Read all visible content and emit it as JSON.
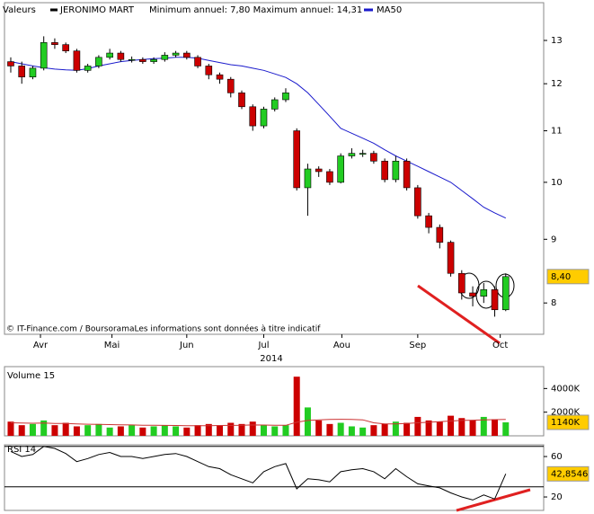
{
  "chart_data": [
    {
      "type": "candlestick",
      "legend_title": "Valeurs",
      "title": "JERONIMO MART",
      "subtitle": "Minimum annuel: 7,80 Maximum annuel: 14,31",
      "source": "© IT-Finance.com / BoursoramaLes informations sont données à titre indicatif",
      "xlabel": "2014",
      "legend_color": "#000000",
      "up_color": "#22cc22",
      "down_color": "#cc0000",
      "open": [
        12.5,
        12.4,
        12.15,
        12.35,
        12.95,
        12.9,
        12.75,
        12.3,
        12.4,
        12.6,
        12.7,
        12.55,
        12.55,
        12.5,
        12.55,
        12.65,
        12.7,
        12.6,
        12.4,
        12.2,
        12.1,
        11.8,
        11.5,
        11.1,
        11.45,
        11.65,
        11.0,
        9.9,
        10.25,
        10.2,
        10.0,
        10.5,
        10.55,
        10.55,
        10.4,
        10.05,
        10.4,
        9.9,
        9.4,
        9.2,
        8.95,
        8.45,
        8.15,
        8.1,
        8.2,
        7.9
      ],
      "high": [
        12.6,
        12.5,
        12.4,
        13.1,
        13.05,
        12.95,
        12.8,
        12.45,
        12.65,
        12.8,
        12.75,
        12.62,
        12.6,
        12.6,
        12.72,
        12.75,
        12.75,
        12.65,
        12.45,
        12.25,
        12.15,
        11.85,
        11.55,
        11.5,
        11.7,
        11.9,
        11.05,
        10.35,
        10.3,
        10.25,
        10.55,
        10.65,
        10.62,
        10.6,
        10.45,
        10.5,
        10.45,
        9.95,
        9.45,
        9.25,
        8.98,
        8.5,
        8.25,
        8.3,
        8.25,
        8.45
      ],
      "low": [
        12.25,
        12.0,
        12.1,
        12.3,
        12.8,
        12.7,
        12.25,
        12.25,
        12.35,
        12.55,
        12.5,
        12.48,
        12.45,
        12.45,
        12.5,
        12.6,
        12.55,
        12.35,
        12.1,
        12.0,
        11.7,
        11.45,
        11.0,
        11.05,
        11.4,
        11.6,
        9.85,
        9.4,
        10.1,
        9.95,
        9.98,
        10.45,
        10.48,
        10.35,
        10.0,
        10.0,
        9.85,
        9.35,
        9.1,
        8.85,
        8.4,
        8.05,
        7.95,
        8.0,
        7.8,
        7.88
      ],
      "close": [
        12.4,
        12.15,
        12.35,
        12.95,
        12.9,
        12.75,
        12.3,
        12.4,
        12.6,
        12.7,
        12.55,
        12.55,
        12.5,
        12.55,
        12.65,
        12.7,
        12.6,
        12.4,
        12.2,
        12.1,
        11.8,
        11.5,
        11.1,
        11.45,
        11.65,
        11.8,
        9.9,
        10.25,
        10.2,
        10.0,
        10.5,
        10.55,
        10.55,
        10.4,
        10.05,
        10.4,
        9.9,
        9.4,
        9.2,
        8.95,
        8.45,
        8.15,
        8.1,
        8.2,
        7.9,
        8.4
      ],
      "series": [
        {
          "name": "MA50",
          "color": "#1a1acc",
          "values": [
            12.5,
            12.45,
            12.4,
            12.36,
            12.33,
            12.31,
            12.3,
            12.34,
            12.4,
            12.45,
            12.5,
            12.53,
            12.55,
            12.57,
            12.58,
            12.6,
            12.6,
            12.58,
            12.53,
            12.48,
            12.43,
            12.4,
            12.35,
            12.3,
            12.22,
            12.14,
            12.0,
            11.8,
            11.55,
            11.3,
            11.05,
            10.95,
            10.85,
            10.75,
            10.62,
            10.5,
            10.4,
            10.3,
            10.2,
            10.1,
            10.0,
            9.85,
            9.7,
            9.55,
            9.45,
            9.36
          ]
        }
      ],
      "log": true,
      "ylim": [
        7.55,
        13.94
      ],
      "yticks": [
        8,
        9,
        10,
        11,
        12,
        13
      ],
      "xlim": [
        -0.57,
        48.45
      ],
      "xticks": [
        {
          "value": 2.7,
          "label": "Avr"
        },
        {
          "value": 9.2,
          "label": "Mai"
        },
        {
          "value": 16.0,
          "label": "Jun"
        },
        {
          "value": 23.0,
          "label": "Jul"
        },
        {
          "value": 30.1,
          "label": "Aou"
        },
        {
          "value": 37.0,
          "label": "Sep"
        },
        {
          "value": 44.5,
          "label": "Oct"
        }
      ],
      "last_value": {
        "value": 8.4,
        "label": "8,40"
      }
    },
    {
      "type": "bar",
      "title": "Volume 15",
      "values": [
        1200,
        900,
        1000,
        1300,
        900,
        1100,
        800,
        900,
        1000,
        700,
        800,
        900,
        700,
        800,
        900,
        800,
        700,
        900,
        1000,
        900,
        1100,
        1000,
        1200,
        900,
        800,
        900,
        5000,
        2400,
        1300,
        1000,
        1100,
        800,
        700,
        900,
        1000,
        1200,
        1100,
        1600,
        1300,
        1200,
        1700,
        1500,
        1300,
        1600,
        1400,
        1140
      ],
      "ma_color": "#cc3333",
      "ma_values": [
        1100,
        1080,
        1060,
        1080,
        1050,
        1040,
        1000,
        980,
        970,
        950,
        930,
        920,
        900,
        890,
        880,
        870,
        860,
        850,
        860,
        870,
        880,
        890,
        920,
        910,
        900,
        890,
        1150,
        1300,
        1350,
        1380,
        1400,
        1380,
        1350,
        1100,
        1000,
        1000,
        1050,
        1100,
        1150,
        1200,
        1250,
        1300,
        1320,
        1350,
        1370,
        1380
      ],
      "ylim": [
        0,
        5850
      ],
      "yticks": [
        {
          "value": 2000,
          "label": "2000K"
        },
        {
          "value": 4000,
          "label": "4000K"
        }
      ],
      "last_value": {
        "value": 1140,
        "label": "1140K"
      }
    },
    {
      "type": "line",
      "title": "RSI 14",
      "color": "#000000",
      "values": [
        65,
        60,
        62,
        70,
        68,
        63,
        55,
        58,
        62,
        64,
        60,
        60,
        58,
        60,
        62,
        63,
        60,
        55,
        50,
        48,
        42,
        38,
        34,
        45,
        50,
        53,
        28,
        38,
        37,
        35,
        45,
        47,
        48,
        45,
        38,
        48,
        40,
        33,
        31,
        29,
        24,
        20,
        17,
        22,
        18,
        42.8546
      ],
      "ylim": [
        6.7,
        71.6
      ],
      "yticks": [
        20,
        60
      ],
      "hlines": [
        30,
        70
      ],
      "last_value": {
        "value": 42.8546,
        "label": "42,8546"
      }
    }
  ]
}
